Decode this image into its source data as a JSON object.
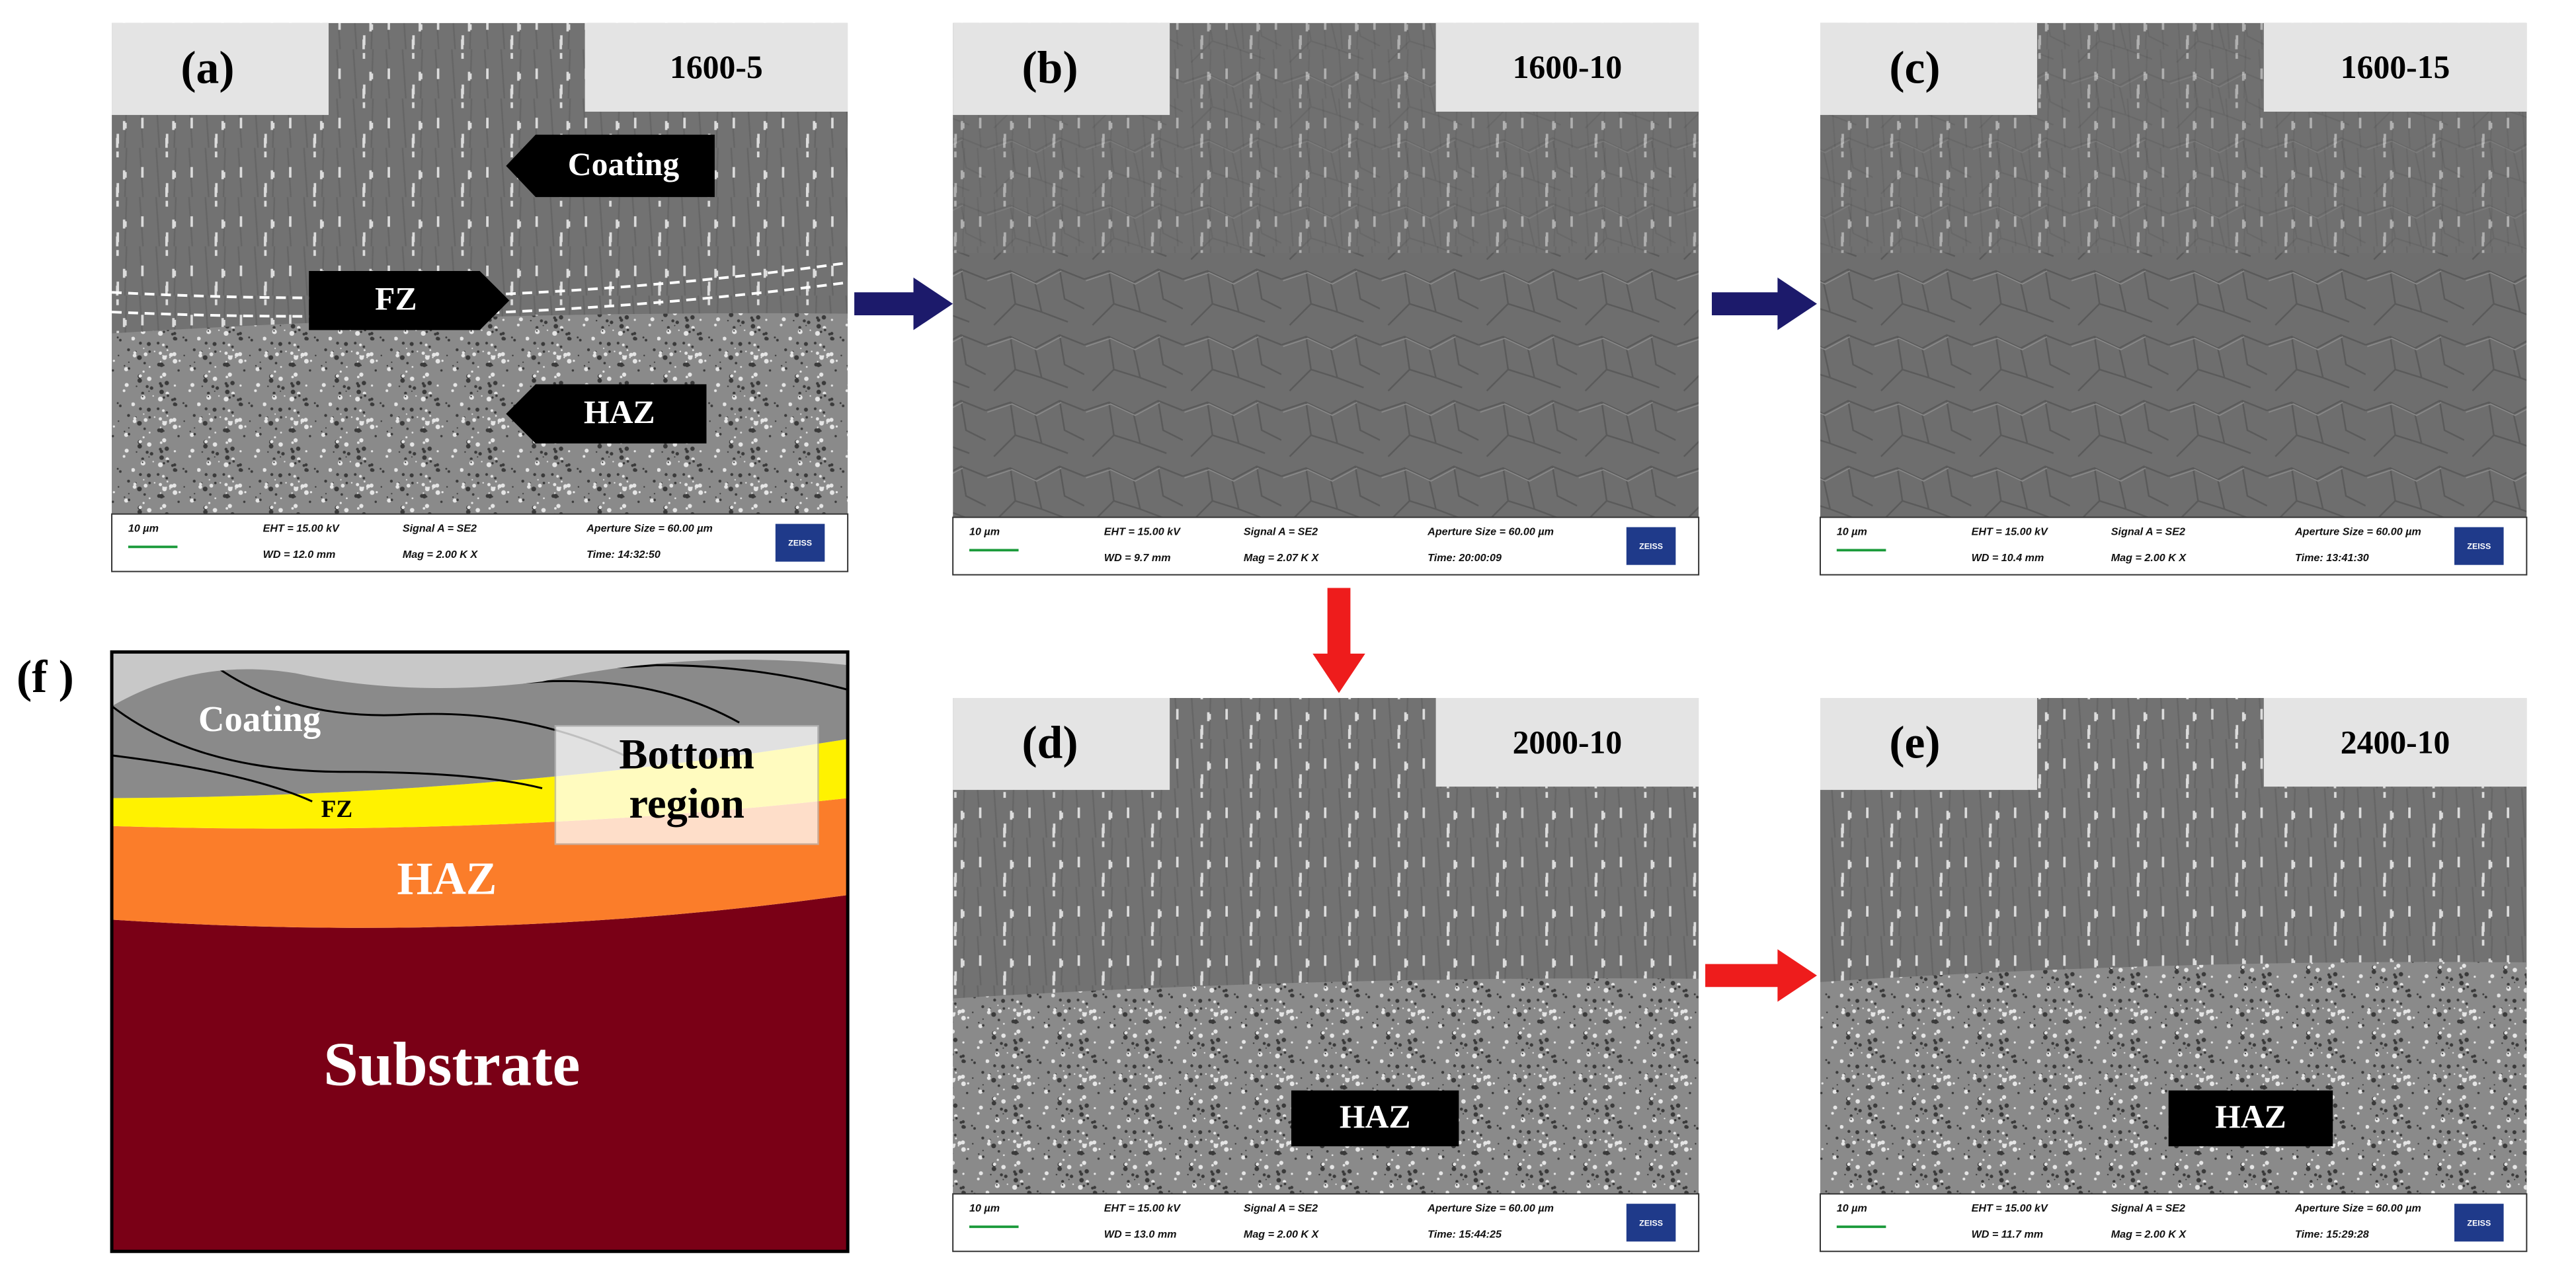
{
  "panels": [
    {
      "label": "(a)",
      "condition": "1600-5",
      "annotations": [
        "Coating",
        "FZ",
        "HAZ"
      ],
      "info": {
        "scale": "10 µm",
        "eht": "EHT = 15.00 kV",
        "wd": "WD = 12.0 mm",
        "signal": "Signal A = SE2",
        "mag": "Mag = 2.00 K X",
        "aperture": "Aperture Size = 60.00 µm",
        "time": "Time: 14:32:50",
        "logo": "ZEISS"
      }
    },
    {
      "label": "(b)",
      "condition": "1600-10",
      "annotations": [],
      "info": {
        "scale": "10 µm",
        "eht": "EHT = 15.00 kV",
        "wd": "WD = 9.7 mm",
        "signal": "Signal A = SE2",
        "mag": "Mag = 2.07 K X",
        "aperture": "Aperture Size = 60.00 µm",
        "time": "Time: 20:00:09",
        "logo": "ZEISS"
      }
    },
    {
      "label": "(c)",
      "condition": "1600-15",
      "annotations": [],
      "info": {
        "scale": "10 µm",
        "eht": "EHT = 15.00 kV",
        "wd": "WD = 10.4 mm",
        "signal": "Signal A = SE2",
        "mag": "Mag = 2.00 K X",
        "aperture": "Aperture Size = 60.00 µm",
        "time": "Time: 13:41:30",
        "logo": "ZEISS"
      }
    },
    {
      "label": "(d)",
      "condition": "2000-10",
      "annotations": [
        "HAZ"
      ],
      "info": {
        "scale": "10 µm",
        "eht": "EHT = 15.00 kV",
        "wd": "WD = 13.0 mm",
        "signal": "Signal A = SE2",
        "mag": "Mag = 2.00 K X",
        "aperture": "Aperture Size = 60.00 µm",
        "time": "Time: 15:44:25",
        "logo": "ZEISS"
      }
    },
    {
      "label": "(e)",
      "condition": "2400-10",
      "annotations": [
        "HAZ"
      ],
      "info": {
        "scale": "10 µm",
        "eht": "EHT = 15.00 kV",
        "wd": "WD = 11.7 mm",
        "signal": "Signal A = SE2",
        "mag": "Mag = 2.00 K X",
        "aperture": "Aperture Size = 60.00 µm",
        "time": "Time: 15:29:28",
        "logo": "ZEISS"
      }
    }
  ],
  "schematic": {
    "label": "(f )",
    "coating": "Coating",
    "fz": "FZ",
    "bottom_region": [
      "Bottom",
      "region"
    ],
    "haz": "HAZ",
    "substrate": "Substrate"
  }
}
